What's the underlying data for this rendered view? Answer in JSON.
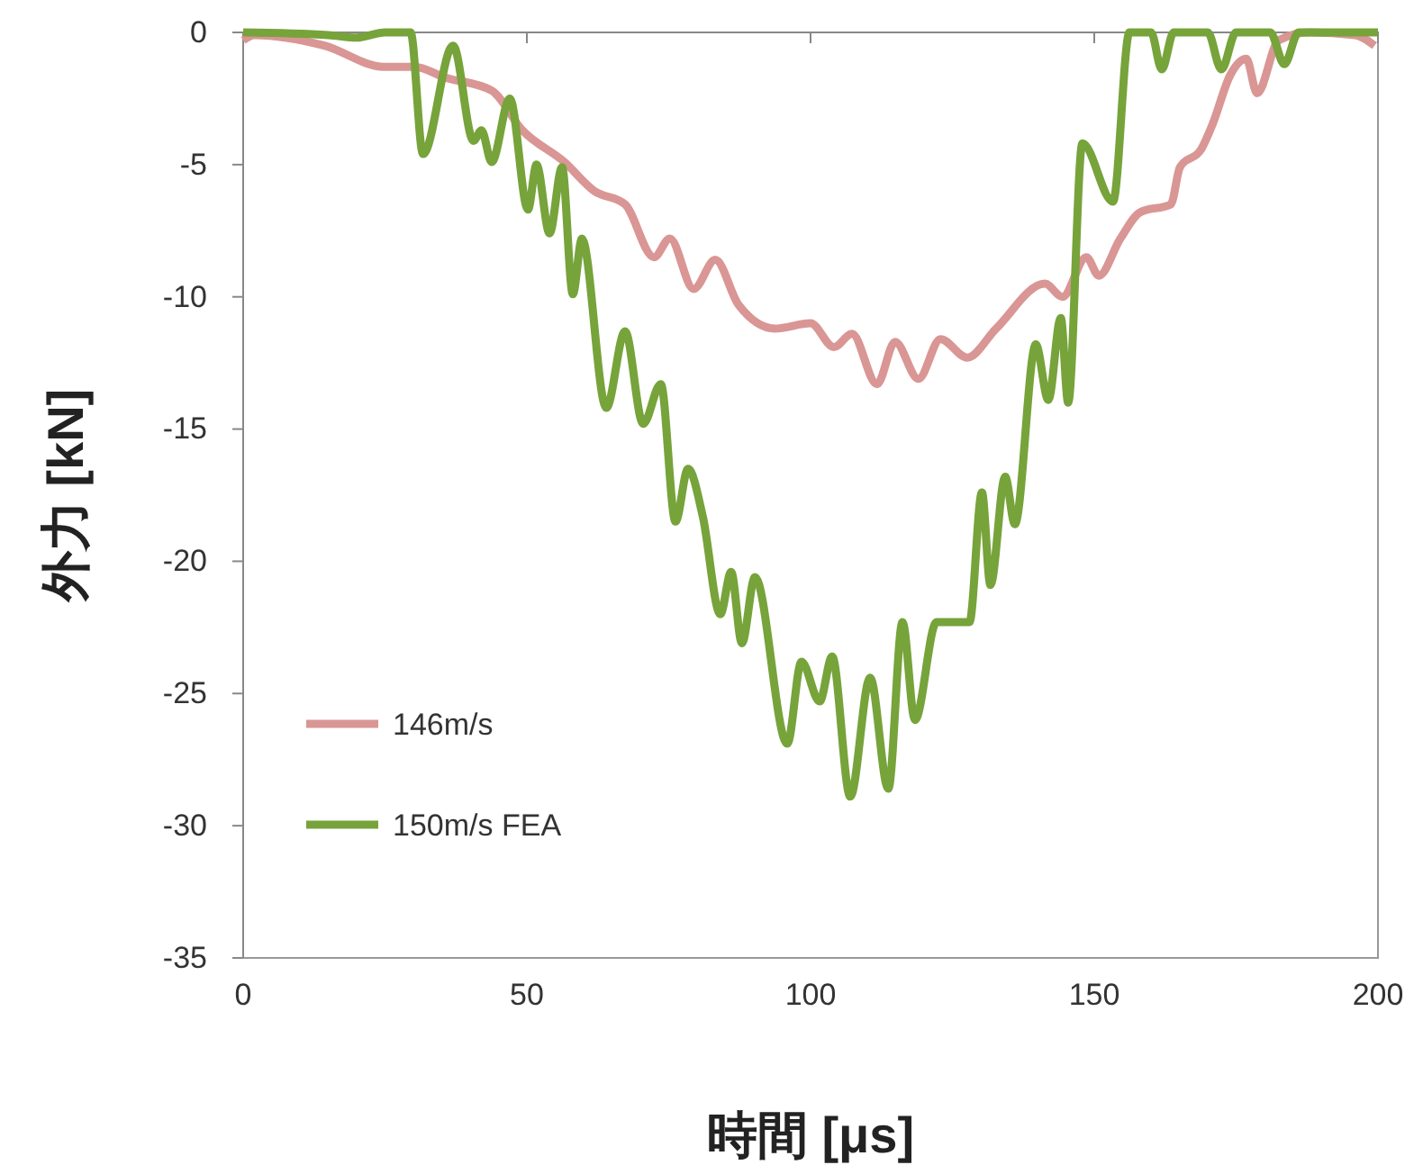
{
  "chart_data": {
    "type": "line",
    "xlabel": "時間 [μs]",
    "ylabel": "外力 [kN]",
    "xlim": [
      0,
      200
    ],
    "ylim": [
      -35,
      0
    ],
    "xticks": [
      0,
      50,
      100,
      150,
      200
    ],
    "yticks": [
      -35,
      -30,
      -25,
      -20,
      -15,
      -10,
      -5,
      0
    ],
    "grid": false,
    "legend": "bottom left",
    "marker": "none",
    "line_style": "solid",
    "series": [
      {
        "name": "146m/s",
        "color": "#d99694",
        "x": [
          0,
          2,
          14.3,
          24.8,
          30.2,
          35.5,
          43.8,
          49.2,
          56.6,
          61.9,
          67.3,
          72.4,
          75.2,
          79.4,
          83.2,
          87.3,
          93.7,
          100,
          104.1,
          107.3,
          111.7,
          114.9,
          119,
          122.9,
          127.6,
          132.7,
          141.3,
          144.4,
          148.6,
          150.8,
          154.6,
          158.1,
          163.5,
          165.1,
          168.9,
          170.8,
          174,
          176.8,
          178.7,
          182.5,
          187.9,
          196,
          199.4
        ],
        "values": [
          -0.3,
          -0.1,
          -0.5,
          -1.3,
          -1.3,
          -1.7,
          -2.2,
          -3.7,
          -4.9,
          -6,
          -6.5,
          -8.5,
          -7.8,
          -9.7,
          -8.6,
          -10.3,
          -11.2,
          -11,
          -11.9,
          -11.4,
          -13.3,
          -11.7,
          -13.1,
          -11.6,
          -12.3,
          -11.2,
          -9.5,
          -10,
          -8.5,
          -9.2,
          -7.8,
          -6.8,
          -6.5,
          -5.1,
          -4.4,
          -3.5,
          -1.6,
          -1,
          -2.3,
          -0.3,
          0,
          -0.1,
          -0.5
        ]
      },
      {
        "name": "150m/s FEA",
        "color": "#77a33b",
        "x": [
          0,
          15,
          20,
          25,
          29.5,
          31.7,
          37,
          40.6,
          42,
          43.8,
          47,
          50.2,
          51.7,
          54,
          56.2,
          58.1,
          59.7,
          64,
          67.3,
          70.5,
          73.6,
          76.2,
          78.4,
          81,
          84.1,
          86,
          87.9,
          90.2,
          95.9,
          98.4,
          101.6,
          103.8,
          107,
          110.5,
          113.7,
          116.2,
          118.4,
          122.2,
          128,
          130.2,
          131.7,
          134.3,
          136,
          139.7,
          141.9,
          144.1,
          145.4,
          147.9,
          153.3,
          156.2,
          160,
          161.9,
          164,
          170,
          172.4,
          175,
          181,
          183.5,
          186,
          200
        ],
        "values": [
          0,
          -0.1,
          -0.2,
          0,
          0,
          -4.6,
          -0.5,
          -4.1,
          -3.7,
          -4.9,
          -2.5,
          -6.7,
          -5,
          -7.6,
          -5.1,
          -9.9,
          -7.8,
          -14.2,
          -11.3,
          -14.8,
          -13.3,
          -18.5,
          -16.5,
          -18.3,
          -22,
          -20.4,
          -23.1,
          -20.6,
          -26.9,
          -23.8,
          -25.3,
          -23.6,
          -28.9,
          -24.4,
          -28.6,
          -22.3,
          -26,
          -22.3,
          -22.3,
          -17.4,
          -20.9,
          -16.8,
          -18.6,
          -11.8,
          -13.9,
          -10.8,
          -14,
          -4.2,
          -6.4,
          0,
          0,
          -1.4,
          0,
          0,
          -1.4,
          0,
          0,
          -1.2,
          0,
          0
        ]
      }
    ]
  }
}
